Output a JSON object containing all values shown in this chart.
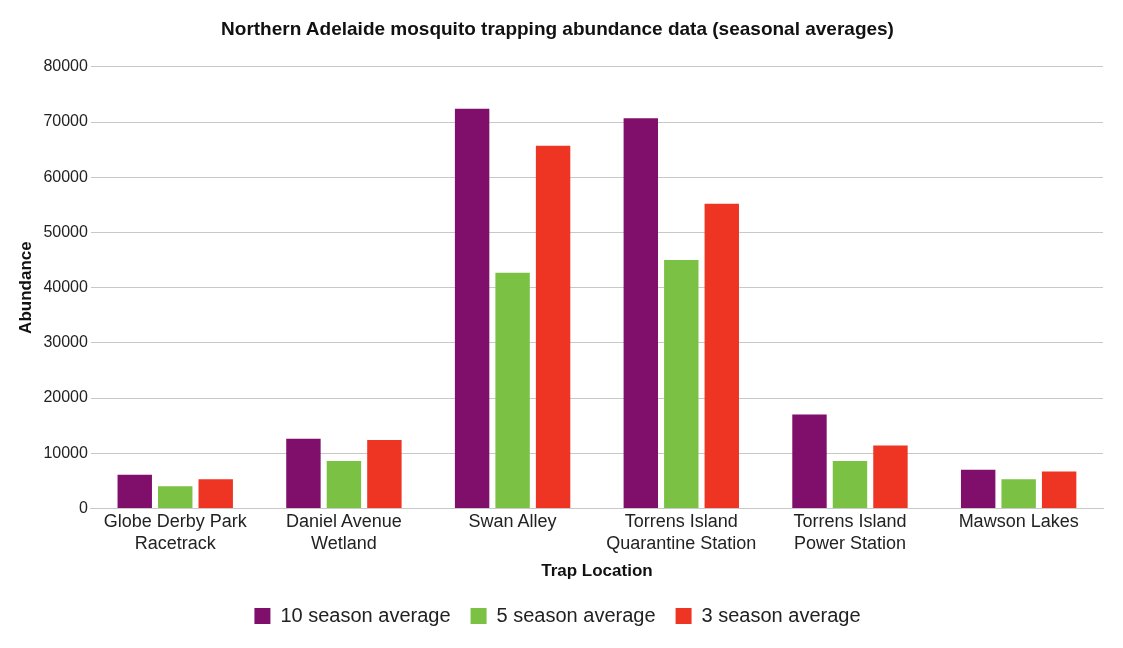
{
  "chart_data": {
    "type": "bar",
    "title": "Northern Adelaide mosquito trapping abundance data (seasonal averages)",
    "xlabel": "Trap Location",
    "ylabel": "Abundance",
    "categories": [
      "Globe Derby Park Racetrack",
      "Daniel Avenue Wetland",
      "Swan Alley",
      "Torrens Island Quarantine Station",
      "Torrens Island Power Station",
      "Mawson Lakes"
    ],
    "series": [
      {
        "name": "10 season average",
        "color": "#7f0f6a",
        "values": [
          6100,
          12600,
          72400,
          70700,
          17000,
          7000
        ]
      },
      {
        "name": "5 season average",
        "color": "#7bc143",
        "values": [
          4000,
          8600,
          42700,
          45000,
          8600,
          5300
        ]
      },
      {
        "name": "3 season average",
        "color": "#ee3524",
        "values": [
          5300,
          12400,
          65700,
          55200,
          11400,
          6700
        ]
      }
    ],
    "ylim": [
      0,
      80000
    ],
    "yticks": [
      0,
      10000,
      20000,
      30000,
      40000,
      50000,
      60000,
      70000,
      80000
    ],
    "grid": "y",
    "legend": "bottom"
  }
}
